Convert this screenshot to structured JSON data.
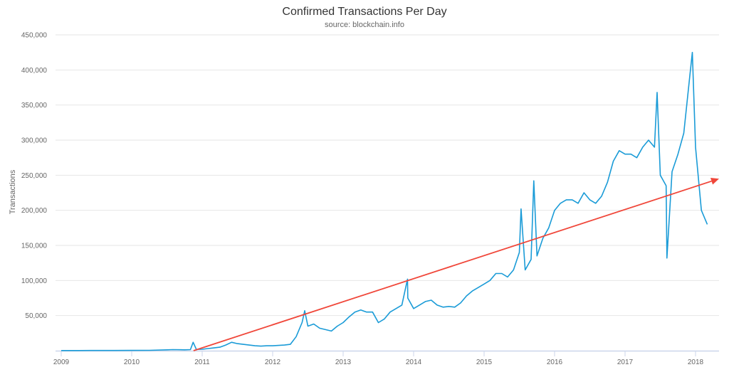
{
  "chart_data": {
    "type": "line",
    "title": "Confirmed Transactions Per Day",
    "subtitle": "source: blockchain.info",
    "xlabel": "",
    "ylabel": "Transactions",
    "xlim": [
      "2009-01-01",
      "2018-04-15"
    ],
    "ylim": [
      0,
      450000
    ],
    "grid": true,
    "legend": "none",
    "x_ticks": [
      "2009",
      "2010",
      "2011",
      "2012",
      "2013",
      "2014",
      "2015",
      "2016",
      "2017",
      "2018"
    ],
    "y_ticks": [
      "50,000",
      "100,000",
      "150,000",
      "200,000",
      "250,000",
      "300,000",
      "350,000",
      "400,000",
      "450,000"
    ],
    "y_tick_values": [
      50000,
      100000,
      150000,
      200000,
      250000,
      300000,
      350000,
      400000,
      450000
    ],
    "colors": {
      "series": "#1a9bd7",
      "trend": "#f0473a",
      "grid": "#e6e6e6"
    },
    "series": [
      {
        "x": [
          "2009-01",
          "2009-04",
          "2009-07",
          "2009-10",
          "2010-01",
          "2010-04",
          "2010-07",
          "2010-08",
          "2010-10",
          "2010-11",
          "2010-11-15",
          "2010-12",
          "2011-01",
          "2011-02",
          "2011-03",
          "2011-04",
          "2011-05",
          "2011-06",
          "2011-07",
          "2011-08",
          "2011-09",
          "2011-10",
          "2011-11",
          "2011-12",
          "2012-01",
          "2012-02",
          "2012-03",
          "2012-04",
          "2012-05",
          "2012-06",
          "2012-06-15",
          "2012-07",
          "2012-08",
          "2012-09",
          "2012-10",
          "2012-11",
          "2012-12",
          "2013-01",
          "2013-02",
          "2013-03",
          "2013-04",
          "2013-05",
          "2013-06",
          "2013-07",
          "2013-08",
          "2013-09",
          "2013-10",
          "2013-11",
          "2013-11-30",
          "2013-12",
          "2014-01",
          "2014-02",
          "2014-03",
          "2014-04",
          "2014-05",
          "2014-06",
          "2014-07",
          "2014-08",
          "2014-09",
          "2014-10",
          "2014-11",
          "2014-12",
          "2015-01",
          "2015-02",
          "2015-03",
          "2015-04",
          "2015-05",
          "2015-06",
          "2015-07",
          "2015-07-10",
          "2015-08",
          "2015-09",
          "2015-09-15",
          "2015-10",
          "2015-11",
          "2015-12",
          "2016-01",
          "2016-02",
          "2016-03",
          "2016-04",
          "2016-05",
          "2016-06",
          "2016-07",
          "2016-08",
          "2016-09",
          "2016-10",
          "2016-11",
          "2016-12",
          "2017-01",
          "2017-02",
          "2017-03",
          "2017-04",
          "2017-05",
          "2017-06",
          "2017-06-15",
          "2017-07",
          "2017-08",
          "2017-08-05",
          "2017-09",
          "2017-10",
          "2017-11",
          "2017-12",
          "2017-12-15",
          "2018-01",
          "2018-02",
          "2018-03"
        ],
        "values": [
          200,
          200,
          300,
          300,
          400,
          500,
          1200,
          1500,
          1200,
          1500,
          12000,
          1800,
          2000,
          3000,
          4000,
          5000,
          8000,
          12000,
          10000,
          9000,
          8000,
          7000,
          6500,
          7000,
          7000,
          7500,
          8000,
          9000,
          20000,
          40000,
          57000,
          35000,
          38000,
          32000,
          30000,
          28000,
          35000,
          40000,
          48000,
          55000,
          58000,
          55000,
          55000,
          40000,
          45000,
          55000,
          60000,
          65000,
          102000,
          75000,
          60000,
          65000,
          70000,
          72000,
          65000,
          62000,
          63000,
          62000,
          68000,
          78000,
          85000,
          90000,
          95000,
          100000,
          110000,
          110000,
          105000,
          115000,
          140000,
          202000,
          115000,
          130000,
          242000,
          135000,
          160000,
          175000,
          200000,
          210000,
          215000,
          215000,
          210000,
          225000,
          215000,
          210000,
          220000,
          240000,
          270000,
          285000,
          280000,
          280000,
          275000,
          290000,
          300000,
          290000,
          368000,
          250000,
          235000,
          132000,
          255000,
          280000,
          310000,
          390000,
          425000,
          290000,
          200000,
          180000
        ]
      }
    ],
    "trend_line": {
      "x": [
        "2010-11-17",
        "2018-05-01"
      ],
      "values": [
        0,
        245000
      ]
    }
  }
}
